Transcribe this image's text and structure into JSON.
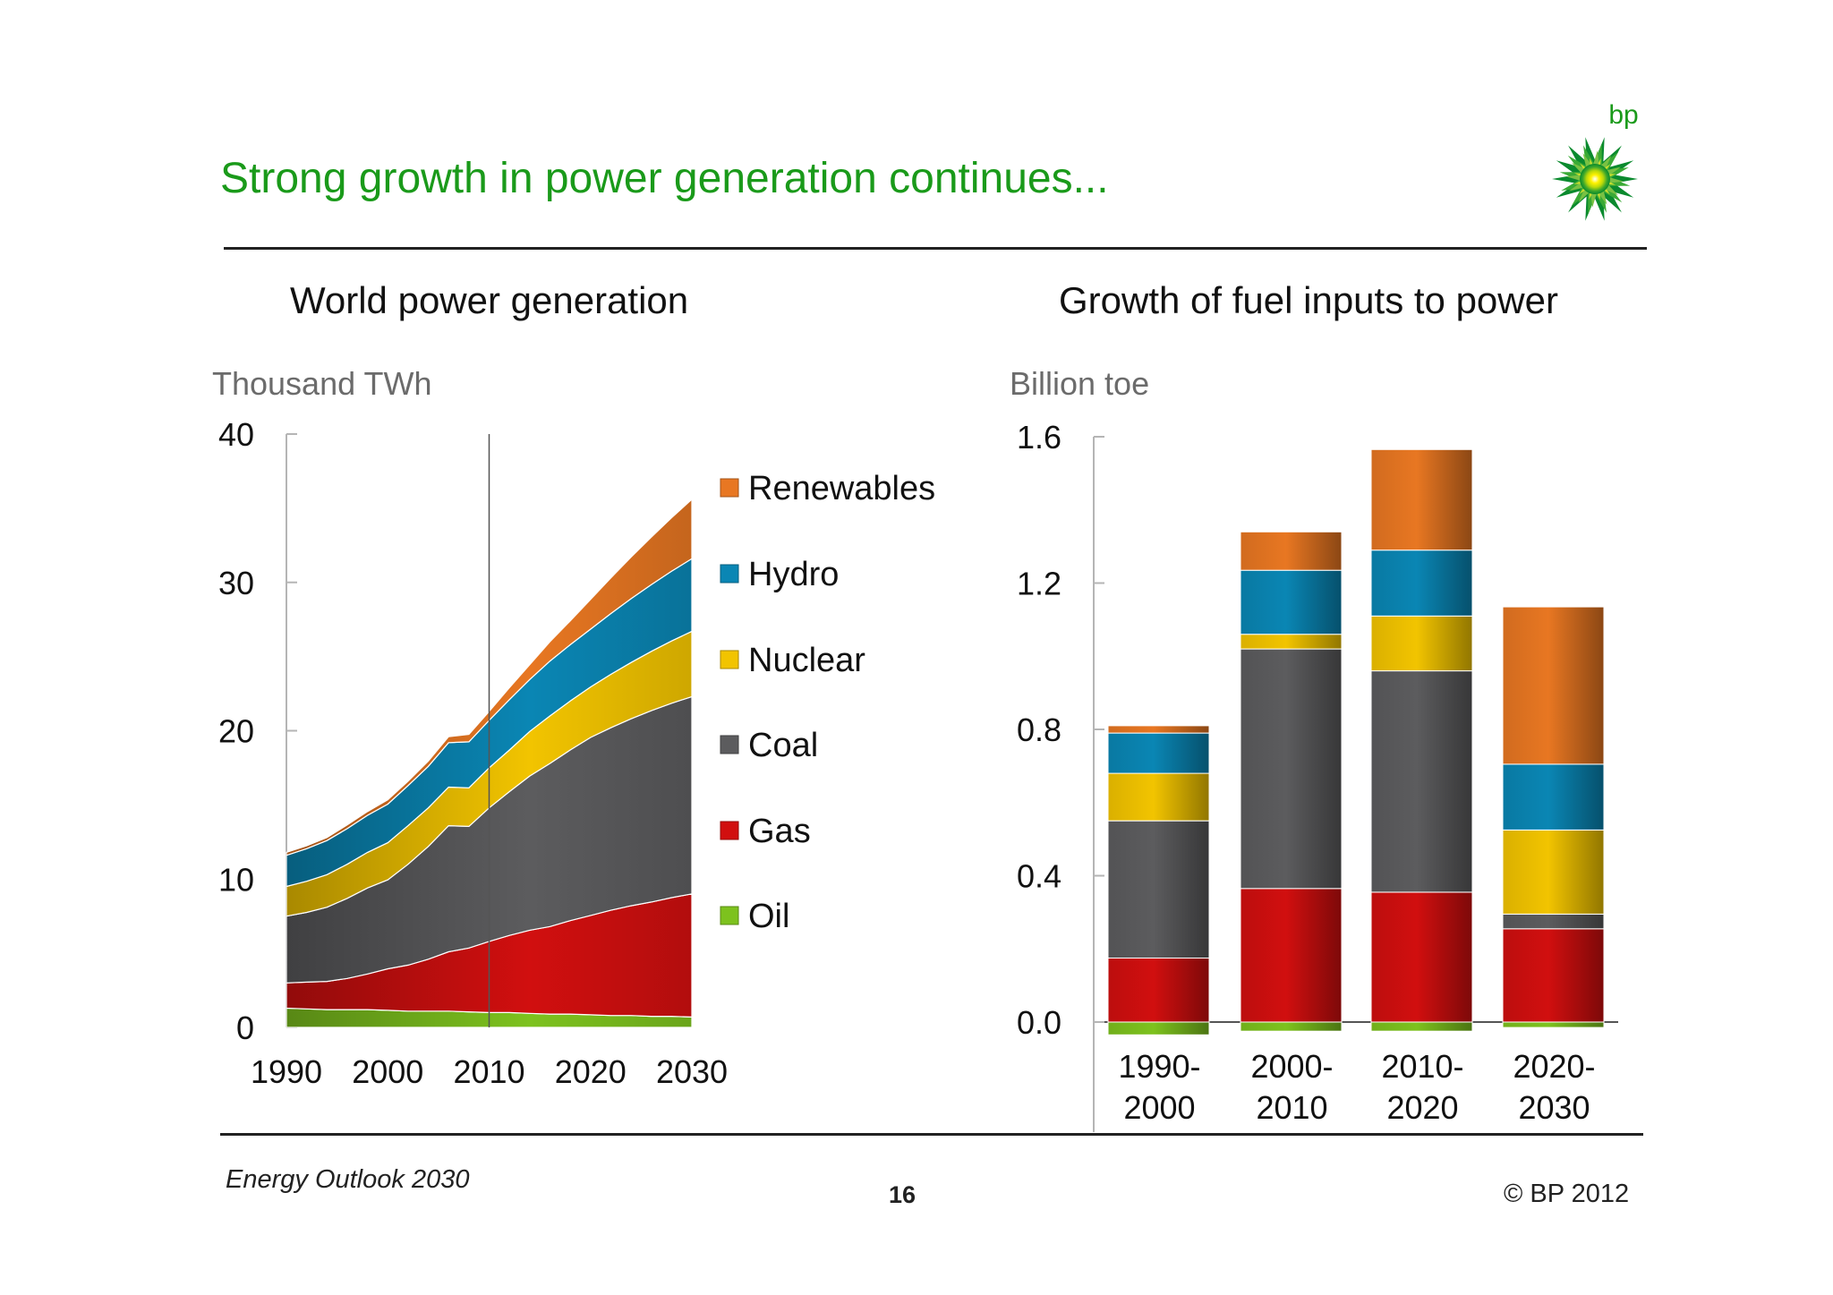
{
  "slide": {
    "title": "Strong growth in power generation continues...",
    "footer_left": "Energy Outlook 2030",
    "page_number": "16",
    "copyright": "© BP 2012",
    "logo_text": "bp"
  },
  "colors": {
    "title_green": "#1a9a1a",
    "Renewables": "#e87722",
    "Hydro": "#0a86b4",
    "Nuclear": "#f2c400",
    "Coal": "#5c5c5e",
    "Gas": "#d10f0f",
    "Oil": "#7dc21e"
  },
  "chart_data": [
    {
      "type": "area",
      "stacked": true,
      "title": "World power generation",
      "ylabel": "Thousand TWh",
      "ylim": [
        0,
        40
      ],
      "yticks": [
        0,
        10,
        20,
        30,
        40
      ],
      "xlim": [
        1990,
        2030
      ],
      "xticks": [
        1990,
        2000,
        2010,
        2020,
        2030
      ],
      "divider_year": 2010,
      "legend_order": [
        "Renewables",
        "Hydro",
        "Nuclear",
        "Coal",
        "Gas",
        "Oil"
      ],
      "x": [
        1990,
        1992,
        1994,
        1996,
        1998,
        2000,
        2002,
        2004,
        2006,
        2008,
        2010,
        2012,
        2014,
        2016,
        2018,
        2020,
        2022,
        2024,
        2026,
        2028,
        2030
      ],
      "series": [
        {
          "name": "Oil",
          "values": [
            1.3,
            1.25,
            1.2,
            1.2,
            1.2,
            1.15,
            1.1,
            1.1,
            1.1,
            1.05,
            1.0,
            1.0,
            0.95,
            0.9,
            0.9,
            0.85,
            0.8,
            0.8,
            0.75,
            0.75,
            0.7
          ]
        },
        {
          "name": "Gas",
          "values": [
            1.7,
            1.8,
            1.9,
            2.1,
            2.4,
            2.8,
            3.1,
            3.5,
            4.0,
            4.3,
            4.8,
            5.2,
            5.6,
            5.9,
            6.3,
            6.7,
            7.1,
            7.4,
            7.7,
            8.0,
            8.3
          ]
        },
        {
          "name": "Coal",
          "values": [
            4.5,
            4.7,
            5.0,
            5.4,
            5.8,
            6.0,
            6.8,
            7.6,
            8.5,
            8.2,
            9.0,
            9.7,
            10.4,
            11.0,
            11.5,
            12.0,
            12.3,
            12.6,
            12.9,
            13.1,
            13.3
          ]
        },
        {
          "name": "Nuclear",
          "values": [
            2.0,
            2.1,
            2.2,
            2.3,
            2.4,
            2.5,
            2.6,
            2.6,
            2.6,
            2.6,
            2.7,
            2.8,
            3.0,
            3.2,
            3.3,
            3.4,
            3.6,
            3.8,
            4.0,
            4.2,
            4.4
          ]
        },
        {
          "name": "Hydro",
          "values": [
            2.1,
            2.2,
            2.3,
            2.4,
            2.5,
            2.6,
            2.7,
            2.8,
            3.0,
            3.1,
            3.2,
            3.4,
            3.5,
            3.7,
            3.8,
            3.9,
            4.1,
            4.3,
            4.5,
            4.7,
            4.9
          ]
        },
        {
          "name": "Renewables",
          "values": [
            0.2,
            0.2,
            0.2,
            0.25,
            0.25,
            0.3,
            0.3,
            0.35,
            0.4,
            0.5,
            0.6,
            0.8,
            1.0,
            1.3,
            1.6,
            2.0,
            2.4,
            2.8,
            3.2,
            3.6,
            4.0
          ]
        }
      ]
    },
    {
      "type": "bar",
      "stacked": true,
      "title": "Growth of fuel inputs to power",
      "ylabel": "Billion toe",
      "ylim": [
        0,
        1.6
      ],
      "yticks": [
        "0.0",
        "0.4",
        "0.8",
        "1.2",
        "1.6"
      ],
      "categories": [
        [
          "1990-",
          "2000"
        ],
        [
          "2000-",
          "2010"
        ],
        [
          "2010-",
          "2020"
        ],
        [
          "2020-",
          "2030"
        ]
      ],
      "series": [
        {
          "name": "Oil",
          "values": [
            -0.035,
            -0.025,
            -0.025,
            -0.015
          ]
        },
        {
          "name": "Gas",
          "values": [
            0.175,
            0.365,
            0.355,
            0.255
          ]
        },
        {
          "name": "Coal",
          "values": [
            0.375,
            0.655,
            0.605,
            0.04
          ]
        },
        {
          "name": "Nuclear",
          "values": [
            0.13,
            0.04,
            0.15,
            0.23
          ]
        },
        {
          "name": "Hydro",
          "values": [
            0.11,
            0.175,
            0.18,
            0.18
          ]
        },
        {
          "name": "Renewables",
          "values": [
            0.02,
            0.105,
            0.275,
            0.43
          ]
        }
      ]
    }
  ]
}
